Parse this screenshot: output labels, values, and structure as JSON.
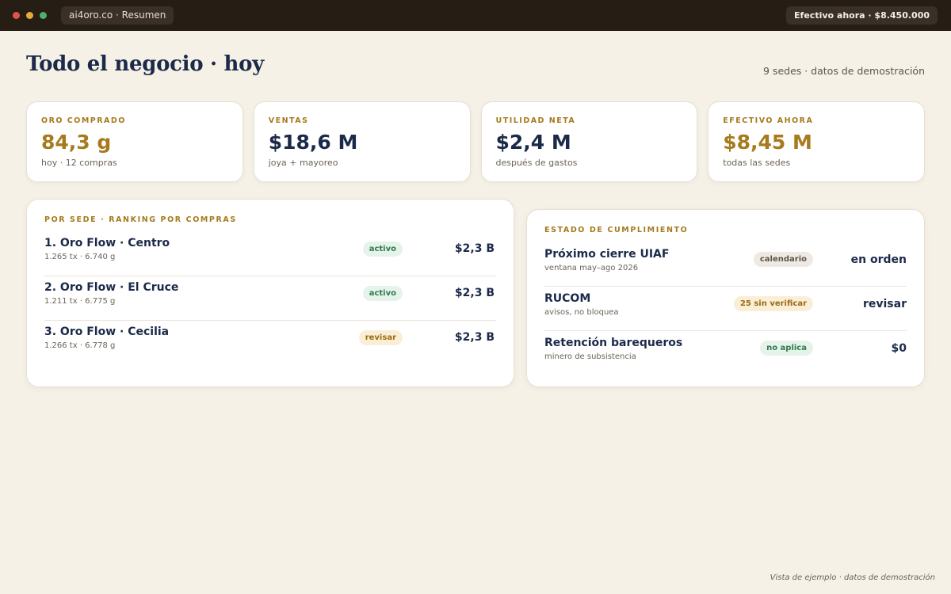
{
  "window": {
    "tab_title": "ai4oro.co · Resumen",
    "cash_pill": "Efectivo ahora · $8.450.000",
    "colors": {
      "close": "#e0544b",
      "minimize": "#e5a93a",
      "maximize": "#4fae6d"
    }
  },
  "page": {
    "title": "Todo el negocio · hoy",
    "subtitle": "9 sedes · datos de demostración"
  },
  "kpis": [
    {
      "label": "ORO COMPRADO",
      "value": "84,3 g",
      "caption": "hoy · 12 compras",
      "accent": "gold"
    },
    {
      "label": "VENTAS",
      "value": "$18,6 M",
      "caption": "joya + mayoreo",
      "accent": "navy"
    },
    {
      "label": "UTILIDAD NETA",
      "value": "$2,4 M",
      "caption": "después de gastos",
      "accent": "navy"
    },
    {
      "label": "EFECTIVO AHORA",
      "value": "$8,45 M",
      "caption": "todas las sedes",
      "accent": "gold"
    }
  ],
  "ranking": {
    "heading": "POR SEDE · RANKING POR COMPRAS",
    "rows": [
      {
        "name": "1. Oro Flow · Centro",
        "meta": "1.265 tx · 6.740 g",
        "status": "activo",
        "status_tone": "green",
        "amount": "$2,3 B"
      },
      {
        "name": "2. Oro Flow · El Cruce",
        "meta": "1.211 tx · 6.775 g",
        "status": "activo",
        "status_tone": "green",
        "amount": "$2,3 B"
      },
      {
        "name": "3. Oro Flow · Cecilia",
        "meta": "1.266 tx · 6.778 g",
        "status": "revisar",
        "status_tone": "amber",
        "amount": "$2,3 B"
      }
    ]
  },
  "compliance": {
    "heading": "ESTADO DE CUMPLIMIENTO",
    "rows": [
      {
        "name": "Próximo cierre UIAF",
        "meta": "ventana may–ago 2026",
        "status": "calendario",
        "status_tone": "gray",
        "value": "en orden"
      },
      {
        "name": "RUCOM",
        "meta": "avisos, no bloquea",
        "status": "25 sin verificar",
        "status_tone": "amber",
        "value": "revisar"
      },
      {
        "name": "Retención barequeros",
        "meta": "minero de subsistencia",
        "status": "no aplica",
        "status_tone": "green",
        "value": "$0"
      }
    ]
  },
  "footnote": "Vista de ejemplo · datos de demostración"
}
